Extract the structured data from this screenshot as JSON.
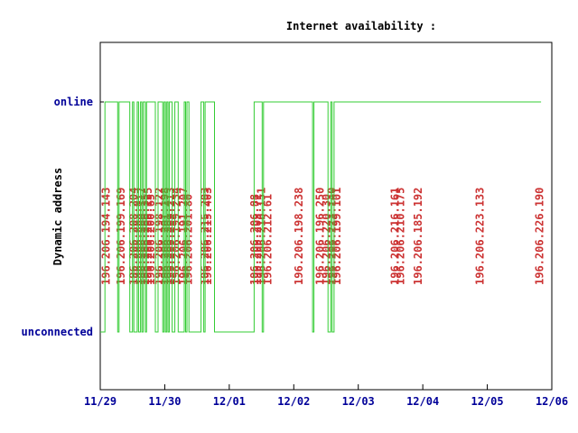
{
  "chart_data": {
    "type": "line",
    "title": "Internet availability :",
    "ylabel": "Dynamic address",
    "xlabel": "",
    "y_categories": [
      "unconnected",
      "online"
    ],
    "x_ticks": [
      "11/29",
      "11/30",
      "12/01",
      "12/02",
      "12/03",
      "12/04",
      "12/05",
      "12/06"
    ],
    "xlim": [
      "11/29 00:00",
      "12/06 00:00"
    ],
    "grid": false,
    "colors": {
      "line": "#33cc33",
      "address": "#cc3333",
      "axis_label": "#000099",
      "frame": "#000000"
    },
    "series": [
      {
        "points": [
          {
            "x": "11/29 00:00",
            "y": 0
          },
          {
            "x": "11/29 01:45",
            "y": 0
          },
          {
            "x": "11/29 01:45",
            "y": 1
          },
          {
            "x": "11/29 06:30",
            "y": 1
          },
          {
            "x": "11/29 06:30",
            "y": 0
          },
          {
            "x": "11/29 07:00",
            "y": 0
          },
          {
            "x": "11/29 07:00",
            "y": 1
          },
          {
            "x": "11/29 11:00",
            "y": 1
          },
          {
            "x": "11/29 11:00",
            "y": 0
          },
          {
            "x": "11/29 12:00",
            "y": 0
          },
          {
            "x": "11/29 12:00",
            "y": 1
          },
          {
            "x": "11/29 12:30",
            "y": 1
          },
          {
            "x": "11/29 12:30",
            "y": 0
          },
          {
            "x": "11/29 13:45",
            "y": 0
          },
          {
            "x": "11/29 13:45",
            "y": 1
          },
          {
            "x": "11/29 14:15",
            "y": 1
          },
          {
            "x": "11/29 14:15",
            "y": 0
          },
          {
            "x": "11/29 15:00",
            "y": 0
          },
          {
            "x": "11/29 15:00",
            "y": 1
          },
          {
            "x": "11/29 15:30",
            "y": 1
          },
          {
            "x": "11/29 15:30",
            "y": 0
          },
          {
            "x": "11/29 16:00",
            "y": 0
          },
          {
            "x": "11/29 16:00",
            "y": 1
          },
          {
            "x": "11/29 16:45",
            "y": 1
          },
          {
            "x": "11/29 16:45",
            "y": 0
          },
          {
            "x": "11/29 17:15",
            "y": 0
          },
          {
            "x": "11/29 17:15",
            "y": 1
          },
          {
            "x": "11/29 20:30",
            "y": 1
          },
          {
            "x": "11/29 20:30",
            "y": 0
          },
          {
            "x": "11/29 21:30",
            "y": 0
          },
          {
            "x": "11/29 21:30",
            "y": 1
          },
          {
            "x": "11/29 23:15",
            "y": 1
          },
          {
            "x": "11/29 23:15",
            "y": 0
          },
          {
            "x": "11/29 23:45",
            "y": 0
          },
          {
            "x": "11/29 23:45",
            "y": 1
          },
          {
            "x": "11/30 00:15",
            "y": 1
          },
          {
            "x": "11/30 00:15",
            "y": 0
          },
          {
            "x": "11/30 00:45",
            "y": 0
          },
          {
            "x": "11/30 00:45",
            "y": 1
          },
          {
            "x": "11/30 01:15",
            "y": 1
          },
          {
            "x": "11/30 01:15",
            "y": 0
          },
          {
            "x": "11/30 01:45",
            "y": 0
          },
          {
            "x": "11/30 01:45",
            "y": 1
          },
          {
            "x": "11/30 02:45",
            "y": 1
          },
          {
            "x": "11/30 02:45",
            "y": 0
          },
          {
            "x": "11/30 03:45",
            "y": 0
          },
          {
            "x": "11/30 03:45",
            "y": 1
          },
          {
            "x": "11/30 05:00",
            "y": 1
          },
          {
            "x": "11/30 05:00",
            "y": 0
          },
          {
            "x": "11/30 07:15",
            "y": 0
          },
          {
            "x": "11/30 07:15",
            "y": 1
          },
          {
            "x": "11/30 07:45",
            "y": 1
          },
          {
            "x": "11/30 07:45",
            "y": 0
          },
          {
            "x": "11/30 08:15",
            "y": 0
          },
          {
            "x": "11/30 08:15",
            "y": 1
          },
          {
            "x": "11/30 09:00",
            "y": 1
          },
          {
            "x": "11/30 09:00",
            "y": 0
          },
          {
            "x": "11/30 13:30",
            "y": 0
          },
          {
            "x": "11/30 13:30",
            "y": 1
          },
          {
            "x": "11/30 14:30",
            "y": 1
          },
          {
            "x": "11/30 14:30",
            "y": 0
          },
          {
            "x": "11/30 15:00",
            "y": 0
          },
          {
            "x": "11/30 15:00",
            "y": 1
          },
          {
            "x": "11/30 18:30",
            "y": 1
          },
          {
            "x": "11/30 18:30",
            "y": 0
          },
          {
            "x": "12/01 09:15",
            "y": 0
          },
          {
            "x": "12/01 09:15",
            "y": 1
          },
          {
            "x": "12/01 09:45",
            "y": 1
          },
          {
            "x": "12/01 09:45",
            "y": 1
          },
          {
            "x": "12/01 12:15",
            "y": 1
          },
          {
            "x": "12/01 12:15",
            "y": 0
          },
          {
            "x": "12/01 12:45",
            "y": 0
          },
          {
            "x": "12/01 12:45",
            "y": 1
          },
          {
            "x": "12/02 07:00",
            "y": 1
          },
          {
            "x": "12/02 07:00",
            "y": 0
          },
          {
            "x": "12/02 07:30",
            "y": 0
          },
          {
            "x": "12/02 07:30",
            "y": 1
          },
          {
            "x": "12/02 12:45",
            "y": 1
          },
          {
            "x": "12/02 12:45",
            "y": 0
          },
          {
            "x": "12/02 13:45",
            "y": 0
          },
          {
            "x": "12/02 13:45",
            "y": 1
          },
          {
            "x": "12/02 14:15",
            "y": 1
          },
          {
            "x": "12/02 14:15",
            "y": 0
          },
          {
            "x": "12/02 15:00",
            "y": 0
          },
          {
            "x": "12/02 15:00",
            "y": 1
          },
          {
            "x": "12/05 20:00",
            "y": 1
          }
        ]
      }
    ],
    "address_labels": [
      {
        "x": "11/29 02:15",
        "text": "196.206.194.143"
      },
      {
        "x": "11/29 07:45",
        "text": "196.206.199.169"
      },
      {
        "x": "11/29 12:30",
        "text": "196.206.208.204"
      },
      {
        "x": "11/29 14:00",
        "text": "196.206.203.8"
      },
      {
        "x": "11/29 15:30",
        "text": "196.206.200.117"
      },
      {
        "x": "11/29 16:45",
        "text": "196.206.200.35"
      },
      {
        "x": "11/29 17:45",
        "text": "196.206.200.135"
      },
      {
        "x": "11/29 18:45",
        "text": "196.206.200.65"
      },
      {
        "x": "11/29 22:00",
        "text": "196.206.198.122"
      },
      {
        "x": "11/30 00:00",
        "text": "196.206.201.198"
      },
      {
        "x": "11/30 01:15",
        "text": "196.206.201.4"
      },
      {
        "x": "11/30 02:15",
        "text": "196.206.209.213"
      },
      {
        "x": "11/30 04:15",
        "text": "196.206.199.234"
      },
      {
        "x": "11/30 07:00",
        "text": "196.206.191.207"
      },
      {
        "x": "11/30 08:45",
        "text": "196.206.201.80"
      },
      {
        "x": "11/30 15:00",
        "text": "196.206.215.203"
      },
      {
        "x": "11/30 16:00",
        "text": "196.206.215.403"
      },
      {
        "x": "12/01 09:30",
        "text": "196.206.206.88"
      },
      {
        "x": "12/01 10:30",
        "text": "196.206.203.71"
      },
      {
        "x": "12/01 12:00",
        "text": "196.206.210.151"
      },
      {
        "x": "12/01 14:15",
        "text": "196.206.212.61"
      },
      {
        "x": "12/02 02:00",
        "text": "196.206.198.238"
      },
      {
        "x": "12/02 09:45",
        "text": "196.206.196.250"
      },
      {
        "x": "12/02 12:15",
        "text": "196.206.220.30"
      },
      {
        "x": "12/02 14:15",
        "text": "196.206.223.140"
      },
      {
        "x": "12/02 16:00",
        "text": "196.206.199.101"
      },
      {
        "x": "12/03 13:45",
        "text": "196.206.216.161"
      },
      {
        "x": "12/03 15:45",
        "text": "196.206.210.175"
      },
      {
        "x": "12/03 22:15",
        "text": "196.206.185.192"
      },
      {
        "x": "12/04 21:15",
        "text": "196.206.223.133"
      },
      {
        "x": "12/05 19:30",
        "text": "196.206.226.190"
      }
    ]
  }
}
